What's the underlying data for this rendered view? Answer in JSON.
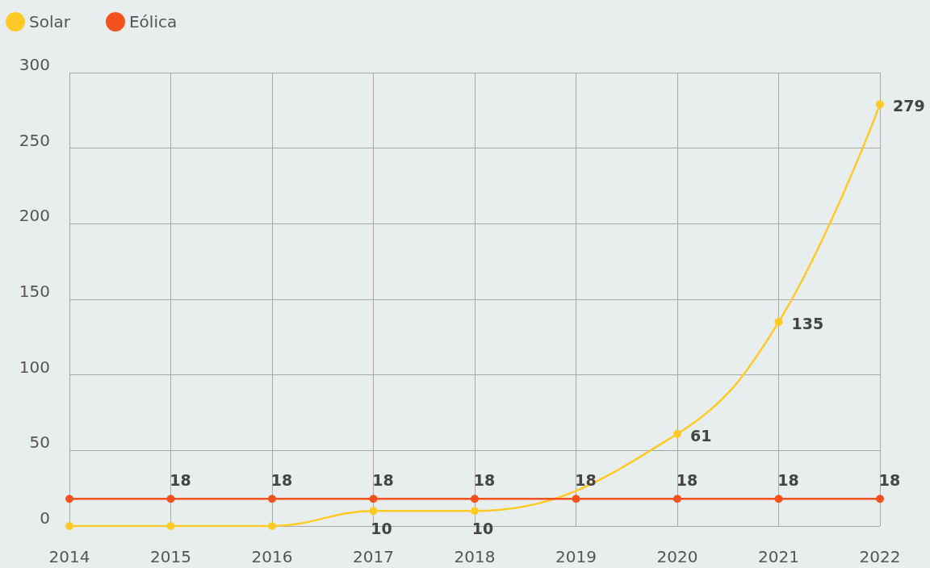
{
  "chart_data": {
    "type": "line",
    "categories": [
      "2014",
      "2015",
      "2016",
      "2017",
      "2018",
      "2019",
      "2020",
      "2021",
      "2022"
    ],
    "series": [
      {
        "name": "Solar",
        "color": "#ffca28",
        "values": [
          0,
          0,
          0,
          10,
          10,
          null,
          61,
          135,
          279
        ],
        "value_labels": [
          null,
          null,
          null,
          "10",
          "10",
          null,
          "61",
          "135",
          "279"
        ]
      },
      {
        "name": "Eólica",
        "color": "#f4511e",
        "values": [
          18,
          18,
          18,
          18,
          18,
          18,
          18,
          18,
          18
        ],
        "value_labels": [
          null,
          "18",
          "18",
          "18",
          "18",
          "18",
          "18",
          "18",
          "18"
        ]
      }
    ],
    "ylim": [
      0,
      300
    ],
    "yticks": [
      0,
      50,
      100,
      150,
      200,
      250,
      300
    ],
    "grid": true,
    "legend": "top left",
    "marker": "circle"
  }
}
